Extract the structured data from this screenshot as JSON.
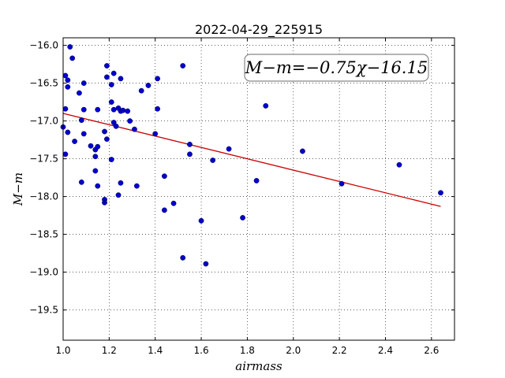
{
  "chart_data": {
    "type": "scatter",
    "title": "2022-04-29_225915",
    "xlabel": "airmass",
    "ylabel": "M−m",
    "xlim": [
      1.0,
      2.7
    ],
    "ylim": [
      -19.9,
      -15.9
    ],
    "y_inverted": true,
    "grid": true,
    "x_ticks": [
      1.0,
      1.2,
      1.4,
      1.6,
      1.8,
      2.0,
      2.2,
      2.4,
      2.6
    ],
    "x_tick_labels": [
      "1.0",
      "1.2",
      "1.4",
      "1.6",
      "1.8",
      "2.0",
      "2.2",
      "2.4",
      "2.6"
    ],
    "y_ticks": [
      -16.0,
      -16.5,
      -17.0,
      -17.5,
      -18.0,
      -18.5,
      -19.0,
      -19.5
    ],
    "y_tick_labels": [
      "−16.0",
      "−16.5",
      "−17.0",
      "−17.5",
      "−18.0",
      "−18.5",
      "−19.0",
      "−19.5"
    ],
    "annotation": "M−m=−0.75χ−16.15",
    "fit_line": {
      "slope": -0.75,
      "intercept": -16.15,
      "x_range": [
        1.0,
        2.64
      ],
      "color": "#cc0000"
    },
    "point_color": "#0000cc",
    "points": [
      [
        1.03,
        -16.02
      ],
      [
        1.04,
        -16.17
      ],
      [
        1.01,
        -16.4
      ],
      [
        1.02,
        -16.46
      ],
      [
        1.09,
        -16.5
      ],
      [
        1.02,
        -16.55
      ],
      [
        1.07,
        -16.63
      ],
      [
        1.01,
        -16.84
      ],
      [
        1.09,
        -16.85
      ],
      [
        1.08,
        -16.99
      ],
      [
        1.0,
        -17.08
      ],
      [
        1.02,
        -17.15
      ],
      [
        1.09,
        -17.17
      ],
      [
        1.05,
        -17.27
      ],
      [
        1.12,
        -17.33
      ],
      [
        1.14,
        -17.38
      ],
      [
        1.15,
        -17.34
      ],
      [
        1.01,
        -17.44
      ],
      [
        1.14,
        -17.47
      ],
      [
        1.14,
        -17.66
      ],
      [
        1.08,
        -17.81
      ],
      [
        1.15,
        -17.86
      ],
      [
        1.19,
        -16.27
      ],
      [
        1.19,
        -16.42
      ],
      [
        1.22,
        -16.37
      ],
      [
        1.21,
        -16.52
      ],
      [
        1.25,
        -16.44
      ],
      [
        1.15,
        -16.85
      ],
      [
        1.21,
        -16.75
      ],
      [
        1.22,
        -16.85
      ],
      [
        1.24,
        -16.83
      ],
      [
        1.25,
        -16.87
      ],
      [
        1.26,
        -16.86
      ],
      [
        1.28,
        -16.87
      ],
      [
        1.22,
        -17.02
      ],
      [
        1.29,
        -17.0
      ],
      [
        1.23,
        -17.07
      ],
      [
        1.18,
        -17.14
      ],
      [
        1.19,
        -17.24
      ],
      [
        1.31,
        -17.11
      ],
      [
        1.21,
        -17.51
      ],
      [
        1.25,
        -17.82
      ],
      [
        1.32,
        -17.86
      ],
      [
        1.24,
        -17.98
      ],
      [
        1.18,
        -18.04
      ],
      [
        1.18,
        -18.08
      ],
      [
        1.34,
        -16.6
      ],
      [
        1.37,
        -16.53
      ],
      [
        1.41,
        -16.44
      ],
      [
        1.41,
        -16.84
      ],
      [
        1.4,
        -17.17
      ],
      [
        1.44,
        -17.73
      ],
      [
        1.48,
        -18.09
      ],
      [
        1.44,
        -18.18
      ],
      [
        1.52,
        -16.27
      ],
      [
        1.55,
        -17.31
      ],
      [
        1.55,
        -17.44
      ],
      [
        1.65,
        -17.52
      ],
      [
        1.72,
        -17.37
      ],
      [
        1.6,
        -18.32
      ],
      [
        1.78,
        -18.28
      ],
      [
        1.52,
        -18.81
      ],
      [
        1.62,
        -18.89
      ],
      [
        1.88,
        -16.8
      ],
      [
        1.84,
        -17.79
      ],
      [
        2.04,
        -17.4
      ],
      [
        2.21,
        -17.83
      ],
      [
        2.46,
        -17.58
      ],
      [
        2.64,
        -17.95
      ]
    ]
  }
}
